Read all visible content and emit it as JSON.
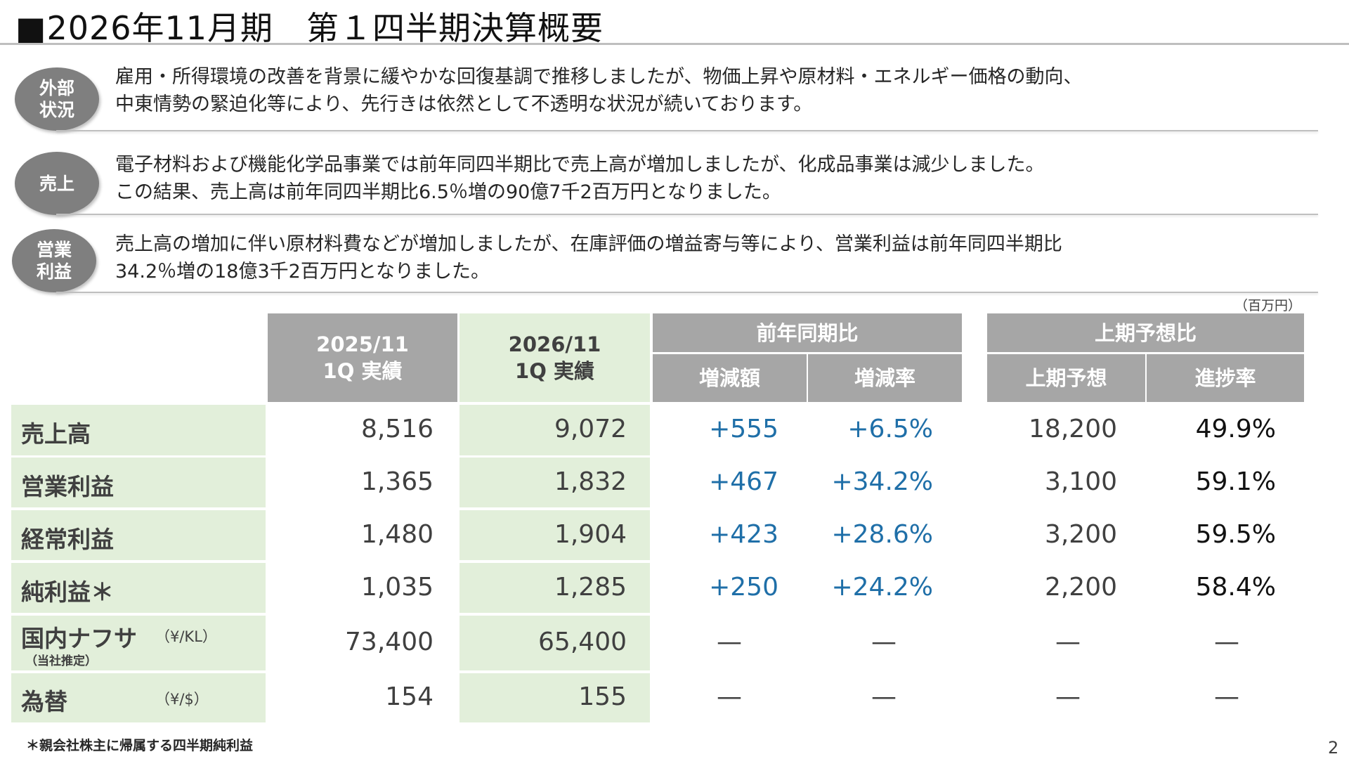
{
  "title": "■2026年11月期　第１四半期決算概要",
  "sections": [
    {
      "badge": "外部\n状況",
      "lines": [
        "雇用・所得環境の改善を背景に緩やかな回復基調で推移しましたが、物価上昇や原材料・エネルギー価格の動向、",
        "中東情勢の緊迫化等により、先行きは依然として不透明な状況が続いております。"
      ]
    },
    {
      "badge": "売上",
      "lines": [
        "電子材料および機能化学品事業では前年同四半期比で売上高が増加しましたが、化成品事業は減少しました。",
        "この結果、売上高は前年同四半期比6.5％増の90億7千2百万円となりました。"
      ]
    },
    {
      "badge": "営業\n利益",
      "lines": [
        "売上高の増加に伴い原材料費などが増加しましたが、在庫評価の増益寄与等により、営業利益は前年同四半期比",
        "34.2％増の18億3千2百万円となりました。"
      ]
    }
  ],
  "table": {
    "unit": "（百万円）",
    "headers": {
      "col1": "2025/11\n1Q 実績",
      "col2": "2026/11\n1Q 実績",
      "yoy_group": "前年同期比",
      "yoy_amount": "増減額",
      "yoy_rate": "増減率",
      "plan_group": "上期予想比",
      "plan_value": "上期予想",
      "plan_progress": "進捗率"
    },
    "rows": [
      {
        "label": "売上高",
        "prev": "8,516",
        "curr": "9,072",
        "diff": "+555",
        "rate": "+6.5%",
        "plan": "18,200",
        "progress": "49.9%"
      },
      {
        "label": "営業利益",
        "prev": "1,365",
        "curr": "1,832",
        "diff": "+467",
        "rate": "+34.2%",
        "plan": "3,100",
        "progress": "59.1%"
      },
      {
        "label": "経常利益",
        "prev": "1,480",
        "curr": "1,904",
        "diff": "+423",
        "rate": "+28.6%",
        "plan": "3,200",
        "progress": "59.5%"
      },
      {
        "label": "純利益＊",
        "prev": "1,035",
        "curr": "1,285",
        "diff": "+250",
        "rate": "+24.2%",
        "plan": "2,200",
        "progress": "58.4%"
      },
      {
        "label": "国内ナフサ",
        "unit": "（¥/KL）",
        "sub": "（当社推定）",
        "prev": "73,400",
        "curr": "65,400",
        "diff": "—",
        "rate": "—",
        "plan": "—",
        "progress": "—"
      },
      {
        "label": "為替",
        "unit": "（¥/$）",
        "prev": "154",
        "curr": "155",
        "diff": "—",
        "rate": "—",
        "plan": "—",
        "progress": "—"
      }
    ]
  },
  "footnote": "＊親会社株主に帰属する四半期純利益",
  "page_number": "2",
  "colors": {
    "header_gray": "#a6a6a6",
    "label_green": "#e2efda",
    "positive_blue": "#1f6fa8",
    "badge_gray": "#7f7f7f"
  }
}
